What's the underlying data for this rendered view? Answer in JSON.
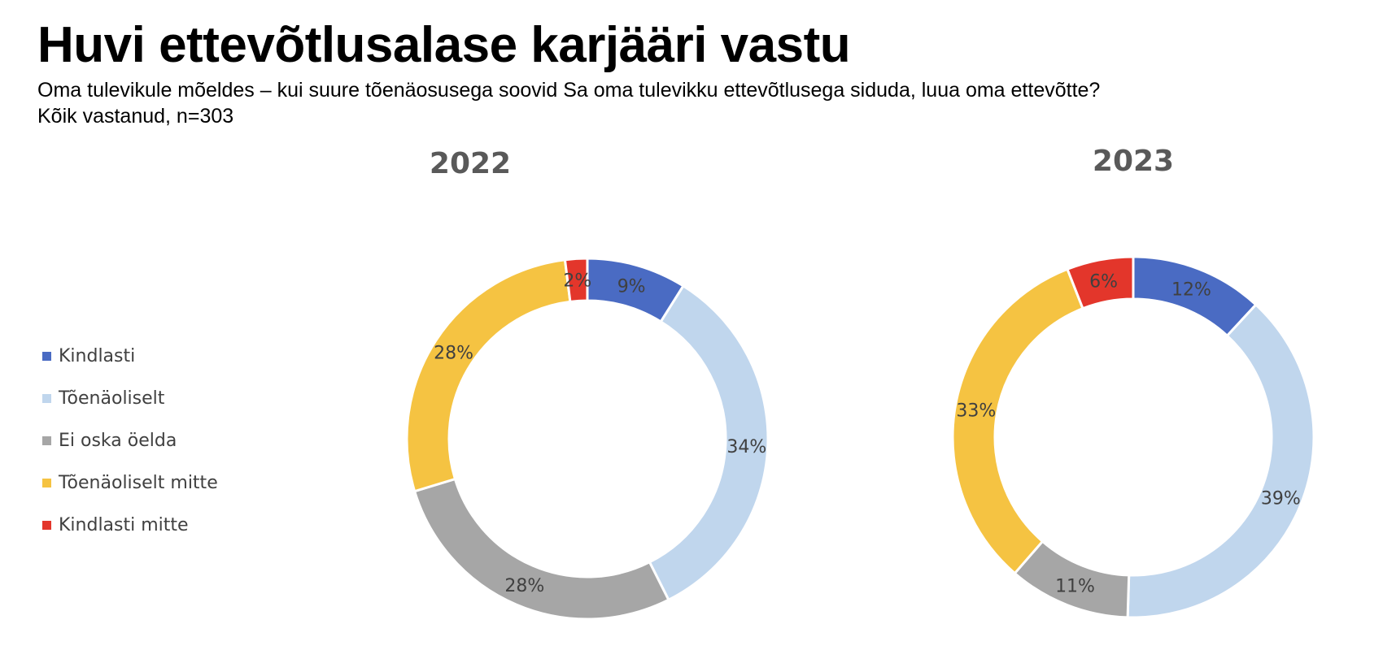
{
  "header": {
    "title": "Huvi ettevõtlusalase karjääri vastu",
    "subtitle": "Oma tulevikule mõeldes – kui suure tõenäosusega soovid Sa oma tulevikku ettevõtlusega siduda, luua oma ettevõtte?",
    "base": "Kõik vastanud, n=303"
  },
  "legend": {
    "items": [
      {
        "label": "Kindlasti",
        "color": "#4a6bc3"
      },
      {
        "label": "Tõenäoliselt",
        "color": "#c0d6ed"
      },
      {
        "label": "Ei oska öelda",
        "color": "#a6a6a6"
      },
      {
        "label": "Tõenäoliselt mitte",
        "color": "#f5c342"
      },
      {
        "label": "Kindlasti mitte",
        "color": "#e3362b"
      }
    ]
  },
  "chart_data": [
    {
      "type": "pie",
      "variant": "donut",
      "title": "2022",
      "categories": [
        "Kindlasti",
        "Tõenäoliselt",
        "Ei oska öelda",
        "Tõenäoliselt mitte",
        "Kindlasti mitte"
      ],
      "values": [
        9,
        34,
        28,
        28,
        2
      ],
      "labels": [
        "9%",
        "34%",
        "28%",
        "28%",
        "2%"
      ],
      "colors": [
        "#4a6bc3",
        "#c0d6ed",
        "#a6a6a6",
        "#f5c342",
        "#e3362b"
      ],
      "legend": "left"
    },
    {
      "type": "pie",
      "variant": "donut",
      "title": "2023",
      "categories": [
        "Kindlasti",
        "Tõenäoliselt",
        "Ei oska öelda",
        "Tõenäoliselt mitte",
        "Kindlasti mitte"
      ],
      "values": [
        12,
        39,
        11,
        33,
        6
      ],
      "labels": [
        "12%",
        "39%",
        "11%",
        "33%",
        "6%"
      ],
      "colors": [
        "#4a6bc3",
        "#c0d6ed",
        "#a6a6a6",
        "#f5c342",
        "#e3362b"
      ],
      "legend": "left"
    }
  ]
}
